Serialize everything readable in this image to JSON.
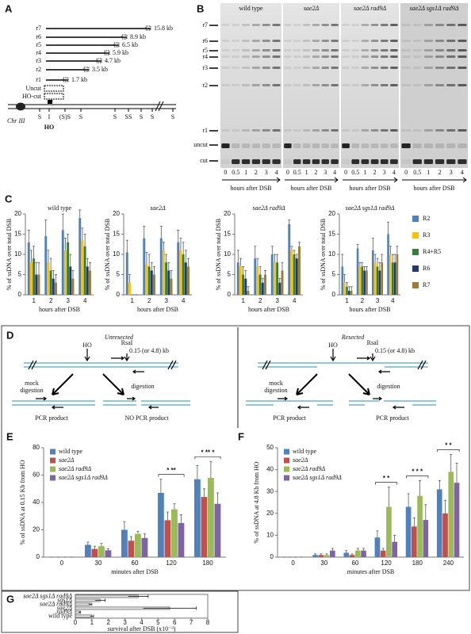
{
  "panel_labels": [
    "A",
    "B",
    "C",
    "D",
    "E",
    "F",
    "G"
  ],
  "panel_a": {
    "fragments": [
      {
        "name": "r7",
        "size": "15.8 kb"
      },
      {
        "name": "r6",
        "size": "8.9 kb"
      },
      {
        "name": "r5",
        "size": "6.5 kb"
      },
      {
        "name": "r4",
        "size": "5.9 kb"
      },
      {
        "name": "r3",
        "size": "4.7 kb"
      },
      {
        "name": "r2",
        "size": "3.5 kb"
      },
      {
        "name": "r1",
        "size": "1.7 kb"
      }
    ],
    "uncut": "Uncut",
    "ho_cut": "HO-cut",
    "chromosome": "Chr III",
    "sites": [
      "S",
      "I",
      "(S)S",
      "S",
      "S",
      "SS",
      "S",
      "S",
      "S"
    ],
    "ho": "HO"
  },
  "panel_b": {
    "strains": [
      "wild type",
      "sae2Δ",
      "sae2Δ rad9Δ",
      "sae2Δ sgs1Δ rad9Δ"
    ],
    "bands": [
      "r7",
      "r6",
      "r5",
      "r4",
      "r3",
      "r2",
      "r1",
      "uncut",
      "cut"
    ],
    "lanes": [
      "0",
      "0.5",
      "1",
      "2",
      "3",
      "4"
    ],
    "x_label": "hours after DSB"
  },
  "panel_d": {
    "unresected": "Unresected",
    "resected": "Resected",
    "ho": "HO",
    "enzyme": "RsaI",
    "distance": "0.15 (or 4.8) kb",
    "mock": "mock",
    "digestion": "digestion",
    "pcr_product": "PCR product",
    "no_pcr_product": "NO PCR product"
  },
  "chart_data": [
    {
      "type": "bar",
      "title": "wild type",
      "categories": [
        "1",
        "2",
        "3",
        "4"
      ],
      "x_label": "hours after DSB",
      "y_label": "% of ssDNA over total DSB",
      "ylim": [
        0,
        20
      ],
      "yticks": [
        0,
        5,
        10,
        15,
        20
      ],
      "series": [
        {
          "name": "R2",
          "color": "#4f81bd",
          "values": [
            13,
            14.5,
            16,
            19
          ],
          "errors": [
            3,
            4,
            4,
            2
          ]
        },
        {
          "name": "R3",
          "color": "#ffc000",
          "values": [
            8,
            8,
            11,
            13.5
          ],
          "errors": [
            3,
            3,
            3,
            3
          ]
        },
        {
          "name": "R4+R5",
          "color": "#3a7d3a",
          "values": [
            9,
            6,
            13,
            12
          ],
          "errors": [
            3,
            3,
            2,
            3
          ]
        },
        {
          "name": "R6",
          "color": "#1f3b6e",
          "values": [
            5,
            4,
            7,
            7
          ],
          "errors": [
            3,
            2,
            3,
            2
          ]
        },
        {
          "name": "R7",
          "color": "#9c7c38",
          "values": [
            5,
            3,
            4,
            6
          ],
          "errors": [
            3,
            2,
            2,
            2
          ]
        }
      ]
    },
    {
      "type": "bar",
      "title": "sae2Δ",
      "categories": [
        "1",
        "2",
        "3",
        "4"
      ],
      "x_label": "hours after DSB",
      "y_label": "% of ssDNA over total DSB",
      "ylim": [
        0,
        20
      ],
      "yticks": [
        0,
        5,
        10,
        15,
        20
      ],
      "series": [
        {
          "color": "#4f81bd",
          "values": [
            10.5,
            14,
            14,
            13
          ],
          "errors": [
            3,
            3,
            3,
            3
          ]
        },
        {
          "color": "#ffc000",
          "values": [
            3,
            7.5,
            11,
            11
          ],
          "errors": [
            2,
            3,
            2,
            3
          ]
        },
        {
          "color": "#3a7d3a",
          "values": [
            0,
            7,
            8,
            10
          ],
          "errors": [
            0,
            3,
            2,
            3
          ]
        },
        {
          "color": "#1f3b6e",
          "values": [
            0,
            6,
            6,
            8
          ],
          "errors": [
            0,
            2,
            2,
            3
          ]
        },
        {
          "color": "#9c7c38",
          "values": [
            0,
            5,
            4,
            7
          ],
          "errors": [
            0,
            2,
            2,
            2
          ]
        }
      ]
    },
    {
      "type": "bar",
      "title": "sae2Δ rad9Δ",
      "categories": [
        "1",
        "2",
        "3",
        "4"
      ],
      "x_label": "hours after DSB",
      "y_label": "% of ssDNA over total DSB",
      "ylim": [
        0,
        20
      ],
      "yticks": [
        0,
        5,
        10,
        15,
        20
      ],
      "series": [
        {
          "color": "#4f81bd",
          "values": [
            8,
            9,
            10,
            17.5
          ],
          "errors": [
            3,
            3,
            2,
            1
          ]
        },
        {
          "color": "#ffc000",
          "values": [
            7,
            7,
            8,
            11
          ],
          "errors": [
            2,
            2,
            2,
            1
          ]
        },
        {
          "color": "#3a7d3a",
          "values": [
            5,
            5,
            8,
            10
          ],
          "errors": [
            2,
            2,
            2,
            1
          ]
        },
        {
          "color": "#1f3b6e",
          "values": [
            4,
            3,
            3,
            9
          ],
          "errors": [
            2,
            1,
            1,
            1
          ]
        },
        {
          "color": "#9c7c38",
          "values": [
            1,
            5,
            6,
            12
          ],
          "errors": [
            1,
            1,
            2,
            1
          ]
        }
      ]
    },
    {
      "type": "bar",
      "title": "sae2Δ sgs1Δ rad9Δ",
      "categories": [
        "1",
        "2",
        "3",
        "4"
      ],
      "x_label": "hours after DSB",
      "y_label": "% of ssDNA over total DSB",
      "ylim": [
        0,
        20
      ],
      "yticks": [
        0,
        5,
        10,
        15,
        20
      ],
      "series": [
        {
          "color": "#4f81bd",
          "values": [
            7,
            11.5,
            11,
            15
          ],
          "errors": [
            3,
            1,
            3,
            3
          ]
        },
        {
          "color": "#ffc000",
          "values": [
            3,
            7,
            8,
            10
          ],
          "errors": [
            2,
            1,
            2,
            2
          ]
        },
        {
          "color": "#3a7d3a",
          "values": [
            2,
            7,
            7,
            8
          ],
          "errors": [
            1,
            1,
            2,
            2
          ]
        },
        {
          "color": "#1f3b6e",
          "values": [
            1,
            6,
            6,
            8
          ],
          "errors": [
            1,
            1,
            2,
            2
          ]
        },
        {
          "color": "#9c7c38",
          "values": [
            1,
            6,
            8,
            10
          ],
          "errors": [
            1,
            1,
            2,
            2
          ]
        }
      ]
    },
    {
      "type": "bar",
      "categories": [
        "0",
        "30",
        "60",
        "120",
        "180"
      ],
      "x_label": "minutes after DSB",
      "y_label": "% of ssDNA at 0.15 Kb from HO",
      "ylim": [
        0,
        80
      ],
      "yticks": [
        0,
        20,
        40,
        60,
        80
      ],
      "significance": [
        null,
        null,
        null,
        "* **",
        "* ** *"
      ],
      "series": [
        {
          "name": "wild type",
          "color": "#4f81bd",
          "values": [
            0,
            9,
            20,
            47,
            57
          ],
          "errors": [
            0,
            2,
            6,
            10,
            10
          ]
        },
        {
          "name": "sae2Δ",
          "color": "#c0504d",
          "values": [
            0,
            6,
            12,
            27,
            44
          ],
          "errors": [
            0,
            2,
            3,
            6,
            6
          ]
        },
        {
          "name": "sae2Δ rad9Δ",
          "color": "#9bbb59",
          "values": [
            0,
            8,
            17,
            35,
            58
          ],
          "errors": [
            0,
            2,
            2,
            4,
            12
          ]
        },
        {
          "name": "sae2Δ sgs1Δ rad9Δ",
          "color": "#8064a2",
          "values": [
            0,
            5,
            14,
            25,
            39
          ],
          "errors": [
            0,
            1,
            3,
            6,
            8
          ]
        }
      ]
    },
    {
      "type": "bar",
      "categories": [
        "0",
        "30",
        "60",
        "120",
        "180",
        "240"
      ],
      "x_label": "minutes after DSB",
      "y_label": "% of ssDNA at 4.8 Kb from HO",
      "ylim": [
        0,
        50
      ],
      "yticks": [
        0,
        10,
        20,
        30,
        40,
        50
      ],
      "significance": [
        null,
        null,
        null,
        "* *",
        "* * *",
        "* *"
      ],
      "series": [
        {
          "name": "wild type",
          "color": "#4f81bd",
          "values": [
            0,
            1,
            2,
            9,
            23,
            31
          ],
          "errors": [
            0,
            0.5,
            1,
            3,
            6,
            4
          ]
        },
        {
          "name": "sae2Δ",
          "color": "#c0504d",
          "values": [
            0,
            1,
            1,
            3,
            14,
            20
          ],
          "errors": [
            0,
            0.5,
            0.5,
            1,
            4,
            6
          ]
        },
        {
          "name": "sae2Δ rad9Δ",
          "color": "#9bbb59",
          "values": [
            0,
            1,
            3,
            23,
            28,
            39
          ],
          "errors": [
            0,
            0.5,
            1,
            9,
            7,
            8
          ]
        },
        {
          "name": "sae2Δ sgs1Δ rad9Δ",
          "color": "#8064a2",
          "values": [
            0,
            3,
            3,
            7,
            17,
            34
          ],
          "errors": [
            0,
            1,
            1,
            3,
            7,
            9
          ]
        }
      ]
    },
    {
      "type": "hbar",
      "categories": [
        "sae2Δ sgs1Δ rad9Δ",
        "sgs1Δ",
        "sae2Δ rad9Δ",
        "sae2Δ",
        "rad9Δ",
        "wild type"
      ],
      "values": [
        3.8,
        1.5,
        0.9,
        5.7,
        0.25,
        1
      ],
      "errors": [
        0.6,
        0.3,
        0.1,
        1.6,
        0.05,
        0.1
      ],
      "color": "#d9d9d9",
      "x_label": "survival after DSB (x10⁻³)",
      "xlim": [
        0,
        8
      ],
      "xticks": [
        0,
        1,
        2,
        3,
        4,
        5,
        6,
        7,
        8
      ]
    }
  ]
}
